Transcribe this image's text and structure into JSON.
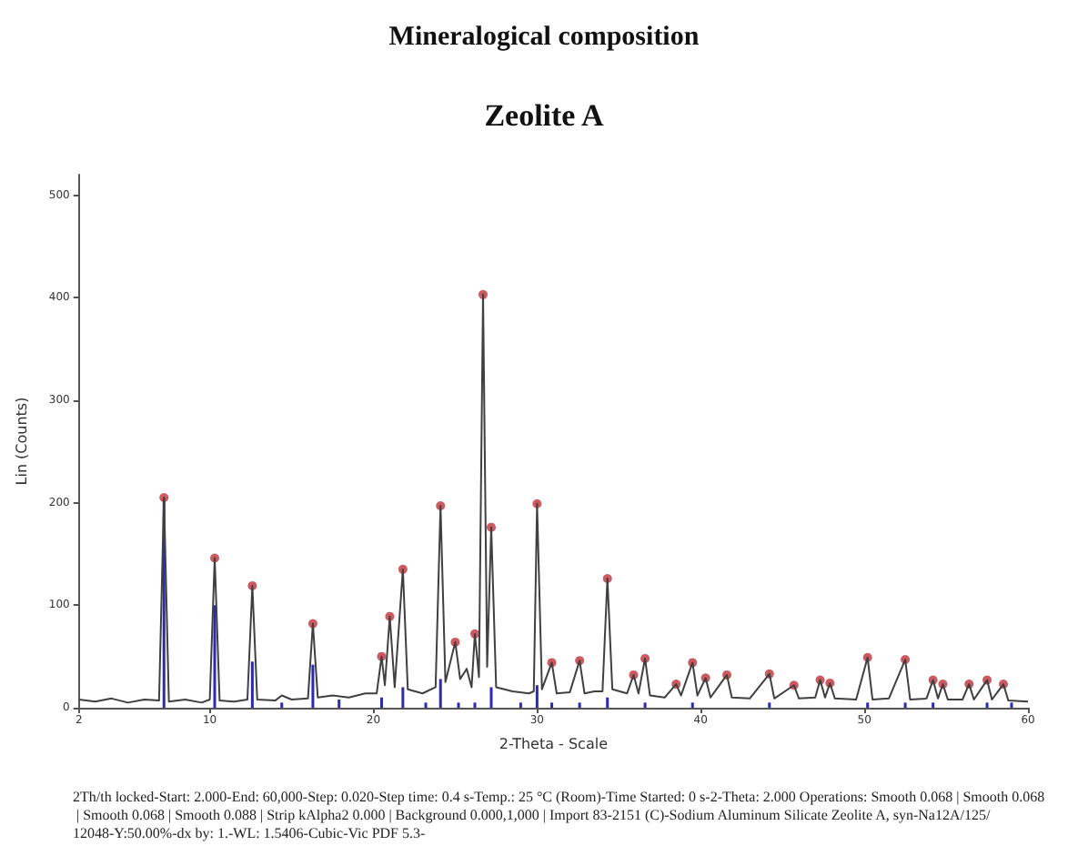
{
  "chart_data": {
    "type": "line",
    "title": "Mineralogical composition",
    "subtitle": "Zeolite A",
    "xlabel": "2-Theta - Scale",
    "ylabel": "Lin (Counts)",
    "annotations": [
      "2Th/th locked-Start: 2.000-End: 60,000-Step: 0.020-Step time: 0.4 s-Temp.: 25 °C (Room)-Time Started: 0 s-2-Theta: 2.000 Operations: Smooth 0.068 | Smooth 0.068 | Smooth 0.068 | Smooth 0.088 | Strip kAlpha2 0.000 | Background 0.000,1,000 | Import 83-2151 (C)-Sodium Aluminum Silicate Zeolite A, syn-Na12A/125/12048-Y:50.00%-dx by: 1.-WL: 1.5406-Cubic-Vic PDF 5.3-"
    ],
    "xlim": [
      2,
      60
    ],
    "xticks": [
      2,
      10,
      20,
      30,
      40,
      50,
      60
    ],
    "ylim": [
      0,
      520
    ],
    "yticks": [
      0,
      100,
      200,
      300,
      400,
      500
    ],
    "grid": false,
    "line_style": "solid",
    "series": [
      {
        "type": "bar",
        "color": "#2b2bb0",
        "x": [
          7.2,
          10.3,
          12.6,
          14.4,
          16.3,
          17.9,
          20.5,
          21.8,
          23.2,
          24.1,
          25.2,
          26.2,
          27.2,
          29.0,
          30.0,
          30.9,
          32.6,
          34.3,
          36.6,
          39.5,
          44.2,
          50.2,
          52.5,
          54.2,
          57.5,
          59.0
        ],
        "values": [
          205,
          100,
          45,
          5,
          42,
          8,
          10,
          20,
          5,
          28,
          5,
          5,
          20,
          5,
          22,
          5,
          5,
          10,
          5,
          5,
          5,
          5,
          5,
          5,
          5,
          5
        ]
      },
      {
        "color": "#404040",
        "marker": "none",
        "x": [
          2,
          3,
          4,
          5,
          6,
          6.9,
          7.2,
          7.5,
          8.5,
          9.5,
          10.0,
          10.3,
          10.6,
          11.5,
          12.3,
          12.6,
          12.9,
          14.0,
          14.4,
          15.0,
          16.0,
          16.3,
          16.6,
          17.5,
          18.5,
          19.5,
          20.2,
          20.5,
          20.7,
          21.0,
          21.3,
          21.8,
          22.1,
          23.0,
          23.8,
          24.1,
          24.4,
          25.0,
          25.3,
          25.7,
          26.0,
          26.2,
          26.45,
          26.7,
          26.95,
          27.2,
          27.5,
          28.5,
          29.5,
          29.8,
          30.0,
          30.3,
          30.9,
          31.2,
          32.0,
          32.6,
          32.9,
          33.5,
          34.0,
          34.3,
          34.6,
          35.5,
          35.9,
          36.2,
          36.6,
          36.9,
          37.8,
          38.5,
          38.8,
          39.5,
          39.8,
          40.3,
          40.6,
          41.6,
          41.9,
          43.0,
          44.2,
          44.5,
          45.7,
          46.0,
          47.0,
          47.3,
          47.6,
          47.9,
          48.2,
          49.5,
          50.2,
          50.5,
          51.5,
          52.5,
          52.8,
          53.8,
          54.2,
          54.5,
          54.8,
          55.1,
          56.0,
          56.4,
          56.7,
          57.5,
          57.8,
          58.5,
          58.8,
          60
        ],
        "values": [
          8,
          6,
          9,
          5,
          8,
          7,
          205,
          6,
          8,
          5,
          8,
          146,
          7,
          6,
          8,
          119,
          8,
          7,
          12,
          8,
          9,
          82,
          10,
          12,
          10,
          14,
          14,
          50,
          22,
          89,
          20,
          135,
          18,
          14,
          20,
          197,
          25,
          64,
          28,
          38,
          20,
          72,
          30,
          403,
          40,
          176,
          20,
          16,
          14,
          16,
          199,
          18,
          44,
          14,
          15,
          46,
          14,
          16,
          16,
          126,
          18,
          14,
          32,
          14,
          48,
          12,
          10,
          23,
          12,
          44,
          12,
          29,
          10,
          32,
          10,
          9,
          33,
          9,
          22,
          9,
          10,
          27,
          10,
          24,
          9,
          8,
          49,
          8,
          9,
          47,
          8,
          9,
          27,
          9,
          23,
          8,
          8,
          23,
          8,
          27,
          8,
          23,
          7,
          6
        ]
      },
      {
        "type": "scatter",
        "color": "#c0303a",
        "marker": "circle",
        "x": [
          7.2,
          10.3,
          12.6,
          16.3,
          20.5,
          21.0,
          21.8,
          24.1,
          25.0,
          26.2,
          26.7,
          27.2,
          30.0,
          30.9,
          32.6,
          34.3,
          35.9,
          36.6,
          38.5,
          39.5,
          40.3,
          41.6,
          44.2,
          45.7,
          47.3,
          47.9,
          50.2,
          52.5,
          54.2,
          54.8,
          56.4,
          57.5,
          58.5
        ],
        "values": [
          205,
          146,
          119,
          82,
          50,
          89,
          135,
          197,
          64,
          72,
          403,
          176,
          199,
          44,
          46,
          126,
          32,
          48,
          23,
          44,
          29,
          32,
          33,
          22,
          27,
          24,
          49,
          47,
          27,
          23,
          23,
          27,
          23
        ]
      }
    ]
  }
}
